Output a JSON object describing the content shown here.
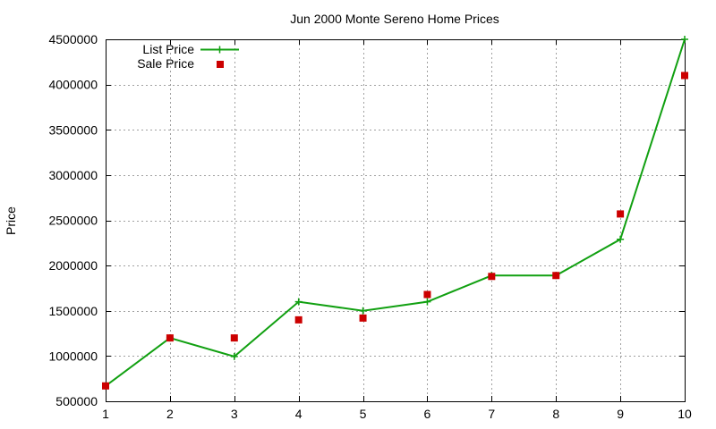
{
  "chart_data": {
    "type": "line",
    "title": "Jun 2000 Monte Sereno Home Prices",
    "xlabel": "",
    "ylabel": "Price",
    "x": [
      1,
      2,
      3,
      4,
      5,
      6,
      7,
      8,
      9,
      10
    ],
    "xlim": [
      1,
      10
    ],
    "ylim": [
      500000,
      4500000
    ],
    "x_ticks": [
      "1",
      "2",
      "3",
      "4",
      "5",
      "6",
      "7",
      "8",
      "9",
      "10"
    ],
    "y_ticks": [
      "500000",
      "1000000",
      "1500000",
      "2000000",
      "2500000",
      "3000000",
      "3500000",
      "4000000",
      "4500000"
    ],
    "y_tick_values": [
      500000,
      1000000,
      1500000,
      2000000,
      2500000,
      3000000,
      3500000,
      4000000,
      4500000
    ],
    "grid": true,
    "legend_position": "top-left",
    "series": [
      {
        "name": "List Price",
        "style": "line-with-plus-markers",
        "color": "#11a011",
        "values": [
          670000,
          1200000,
          995000,
          1600000,
          1500000,
          1600000,
          1890000,
          1890000,
          2290000,
          4500000
        ]
      },
      {
        "name": "Sale Price",
        "style": "square-markers",
        "color": "#cc0000",
        "values": [
          670000,
          1200000,
          1200000,
          1400000,
          1420000,
          1680000,
          1880000,
          1890000,
          2570000,
          4100000
        ]
      }
    ]
  }
}
